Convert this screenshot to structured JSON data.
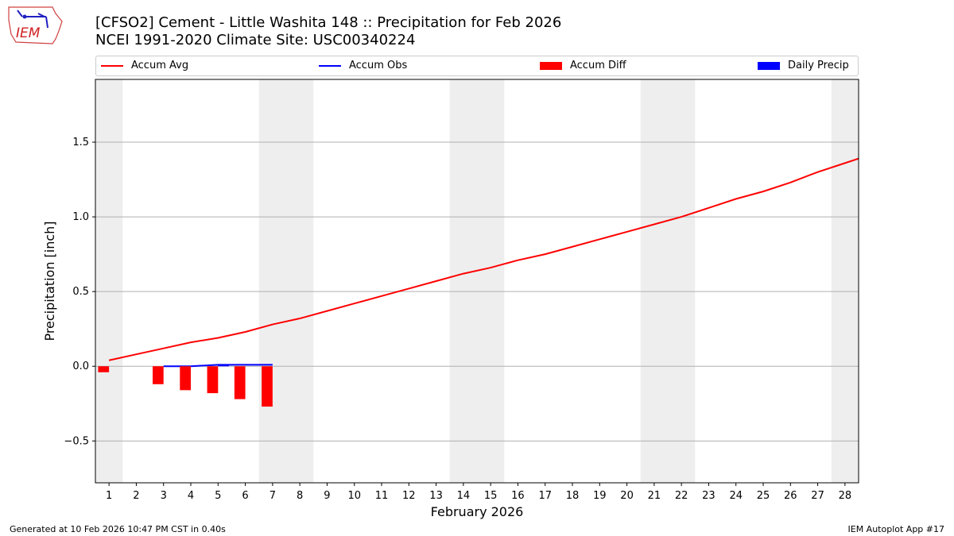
{
  "header": {
    "title_line1": "[CFSO2] Cement - Little Washita 148 :: Precipitation for Feb 2026",
    "title_line2": "NCEI 1991-2020 Climate Site: USC00340224",
    "logo_text": "IEM"
  },
  "legend": {
    "items": [
      {
        "label": "Accum Avg",
        "color": "#ff0000",
        "kind": "line"
      },
      {
        "label": "Accum Obs",
        "color": "#0000ff",
        "kind": "line"
      },
      {
        "label": "Accum Diff",
        "color": "#ff0000",
        "kind": "bar"
      },
      {
        "label": "Daily Precip",
        "color": "#0000ff",
        "kind": "bar"
      }
    ]
  },
  "chart_data": {
    "type": "bar",
    "xlabel": "February 2026",
    "ylabel": "Precipitation [inch]",
    "xlim": [
      0.5,
      28.5
    ],
    "ylim": [
      -0.78,
      1.92
    ],
    "grid": true,
    "legend_position": "top",
    "x_ticks": [
      1,
      2,
      3,
      4,
      5,
      6,
      7,
      8,
      9,
      10,
      11,
      12,
      13,
      14,
      15,
      16,
      17,
      18,
      19,
      20,
      21,
      22,
      23,
      24,
      25,
      26,
      27,
      28
    ],
    "y_ticks": [
      -0.5,
      0.0,
      0.5,
      1.0,
      1.5
    ],
    "y_tick_labels": [
      "−0.5",
      "0.0",
      "0.5",
      "1.0",
      "1.5"
    ],
    "weekend_days": [
      1,
      7,
      8,
      14,
      15,
      21,
      22,
      28
    ],
    "series": [
      {
        "name": "Accum Avg",
        "type": "line",
        "color": "#ff0000",
        "x": [
          1,
          2,
          3,
          4,
          5,
          6,
          7,
          8,
          9,
          10,
          11,
          12,
          13,
          14,
          15,
          16,
          17,
          18,
          19,
          20,
          21,
          22,
          23,
          24,
          25,
          26,
          27,
          28
        ],
        "values": [
          0.04,
          0.08,
          0.12,
          0.16,
          0.19,
          0.23,
          0.28,
          0.32,
          0.37,
          0.42,
          0.47,
          0.52,
          0.57,
          0.62,
          0.66,
          0.71,
          0.75,
          0.8,
          0.85,
          0.9,
          0.95,
          1.0,
          1.06,
          1.12,
          1.17,
          1.23,
          1.3,
          1.36
        ]
      },
      {
        "name": "Accum Obs",
        "type": "line",
        "color": "#0000ff",
        "x": [
          3,
          4,
          5,
          6,
          7
        ],
        "values": [
          0.0,
          0.0,
          0.01,
          0.01,
          0.01
        ]
      },
      {
        "name": "Accum Diff",
        "type": "bar",
        "color": "#ff0000",
        "x": [
          1,
          3,
          4,
          5,
          6,
          7
        ],
        "values": [
          -0.04,
          -0.12,
          -0.16,
          -0.18,
          -0.22,
          -0.27
        ]
      },
      {
        "name": "Daily Precip",
        "type": "bar",
        "color": "#0000ff",
        "x": [
          5
        ],
        "values": [
          0.01
        ]
      }
    ]
  },
  "footer": {
    "generated": "Generated at 10 Feb 2026 10:47 PM CST in 0.40s",
    "app": "IEM Autoplot App #17"
  }
}
